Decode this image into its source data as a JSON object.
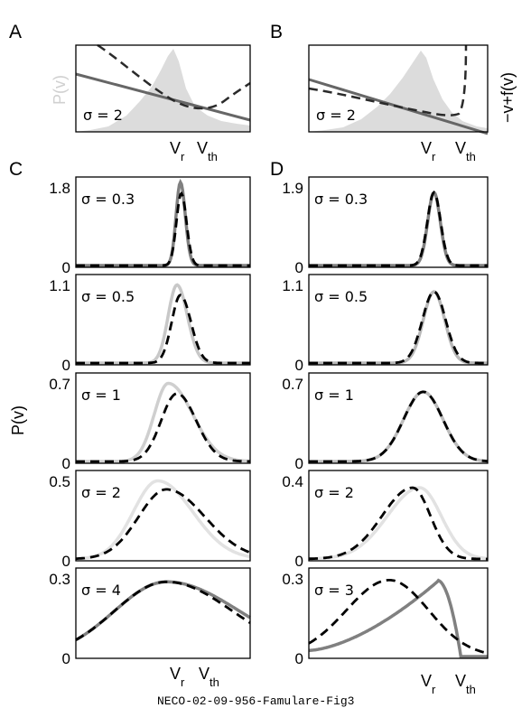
{
  "panel_letters": [
    "A",
    "B",
    "C",
    "D"
  ],
  "colors": {
    "light": "#dcdcdc",
    "mid": "#808080",
    "medium_solid": "#666666",
    "dashed": "#2a2a2a",
    "black": "#000000"
  },
  "labels": {
    "p_of_v": "P(v)",
    "drift": "−v+f(v)",
    "v": "V",
    "r": "r",
    "th": "th",
    "footer": "NECO-02-09-956-Famulare-Fig3"
  },
  "chart_data": [
    {
      "panel": "A",
      "type": "line",
      "sigma_label": "σ = 2",
      "left_axis_label": "P(v)",
      "x_ticks": [
        "Vr",
        "Vth"
      ],
      "series": [
        {
          "style": "filled",
          "description": "P(v)"
        },
        {
          "style": "solid"
        },
        {
          "style": "dashed"
        }
      ]
    },
    {
      "panel": "B",
      "type": "line",
      "sigma_label": "σ = 2",
      "right_axis_label": "−v+f(v)",
      "x_ticks": [
        "Vr",
        "Vth"
      ],
      "series": [
        {
          "style": "filled"
        },
        {
          "style": "solid"
        },
        {
          "style": "dashed"
        }
      ]
    },
    {
      "panel": "C",
      "type": "line",
      "ylabel": "P(v)",
      "x_ticks": [
        "Vr",
        "Vth"
      ],
      "rows": [
        {
          "sigma_label": "σ = 0.3",
          "ymax_label": "1.8",
          "ymin_label": "0"
        },
        {
          "sigma_label": "σ = 0.5",
          "ymax_label": "1.1",
          "ymin_label": "0"
        },
        {
          "sigma_label": "σ = 1",
          "ymax_label": "0.7",
          "ymin_label": "0"
        },
        {
          "sigma_label": "σ = 2",
          "ymax_label": "0.5",
          "ymin_label": "0"
        },
        {
          "sigma_label": "σ = 4",
          "ymax_label": "0.3",
          "ymin_label": "0"
        }
      ]
    },
    {
      "panel": "D",
      "type": "line",
      "x_ticks": [
        "Vr",
        "Vth"
      ],
      "rows": [
        {
          "sigma_label": "σ = 0.3",
          "ymax_label": "1.9",
          "ymin_label": "0"
        },
        {
          "sigma_label": "σ = 0.5",
          "ymax_label": "1.1",
          "ymin_label": "0"
        },
        {
          "sigma_label": "σ = 1",
          "ymax_label": "0.7",
          "ymin_label": "0"
        },
        {
          "sigma_label": "σ = 2",
          "ymax_label": "0.4",
          "ymin_label": "0"
        },
        {
          "sigma_label": "σ = 3",
          "ymax_label": "0.3",
          "ymin_label": "0"
        }
      ]
    }
  ]
}
